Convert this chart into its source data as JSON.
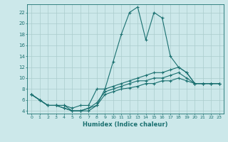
{
  "xlabel": "Humidex (Indice chaleur)",
  "bg_color": "#cce8ea",
  "grid_color": "#aacccc",
  "line_color": "#1a7070",
  "xlim": [
    -0.5,
    23.5
  ],
  "ylim": [
    3.5,
    23.5
  ],
  "xticks": [
    0,
    1,
    2,
    3,
    4,
    5,
    6,
    7,
    8,
    9,
    10,
    11,
    12,
    13,
    14,
    15,
    16,
    17,
    18,
    19,
    20,
    21,
    22,
    23
  ],
  "yticks": [
    4,
    6,
    8,
    10,
    12,
    14,
    16,
    18,
    20,
    22
  ],
  "line1_x": [
    0,
    1,
    2,
    3,
    4,
    5,
    6,
    7,
    8,
    9,
    10,
    11,
    12,
    13,
    14,
    15,
    16,
    17,
    18,
    19,
    20,
    21,
    22,
    23
  ],
  "line1_y": [
    7,
    6,
    5,
    5,
    5,
    4,
    4,
    4,
    5,
    8,
    13,
    18,
    22,
    23,
    17,
    22,
    21,
    14,
    12,
    11,
    9,
    9,
    9,
    9
  ],
  "line2_x": [
    0,
    1,
    2,
    3,
    4,
    5,
    6,
    7,
    8,
    9,
    10,
    11,
    12,
    13,
    14,
    15,
    16,
    17,
    18,
    19,
    20,
    21,
    22,
    23
  ],
  "line2_y": [
    7,
    6,
    5,
    5,
    5,
    4.5,
    5,
    5,
    8,
    8,
    8.5,
    9,
    9.5,
    10,
    10.5,
    11,
    11,
    11.5,
    12,
    11,
    9,
    9,
    9,
    9
  ],
  "line3_x": [
    0,
    1,
    2,
    3,
    4,
    5,
    6,
    7,
    8,
    9,
    10,
    11,
    12,
    13,
    14,
    15,
    16,
    17,
    18,
    19,
    20,
    21,
    22,
    23
  ],
  "line3_y": [
    7,
    6,
    5,
    5,
    4.5,
    4,
    4,
    4.5,
    5.5,
    7.5,
    8,
    8.5,
    9,
    9.5,
    9.5,
    10,
    10,
    10.5,
    11,
    10,
    9,
    9,
    9,
    9
  ],
  "line4_x": [
    0,
    1,
    2,
    3,
    4,
    5,
    6,
    7,
    8,
    9,
    10,
    11,
    12,
    13,
    14,
    15,
    16,
    17,
    18,
    19,
    20,
    21,
    22,
    23
  ],
  "line4_y": [
    7,
    6,
    5,
    5,
    4.5,
    4,
    4,
    4.5,
    5,
    7,
    7.5,
    8,
    8.2,
    8.5,
    9,
    9,
    9.5,
    9.5,
    10,
    9.5,
    9,
    9,
    9,
    9
  ]
}
